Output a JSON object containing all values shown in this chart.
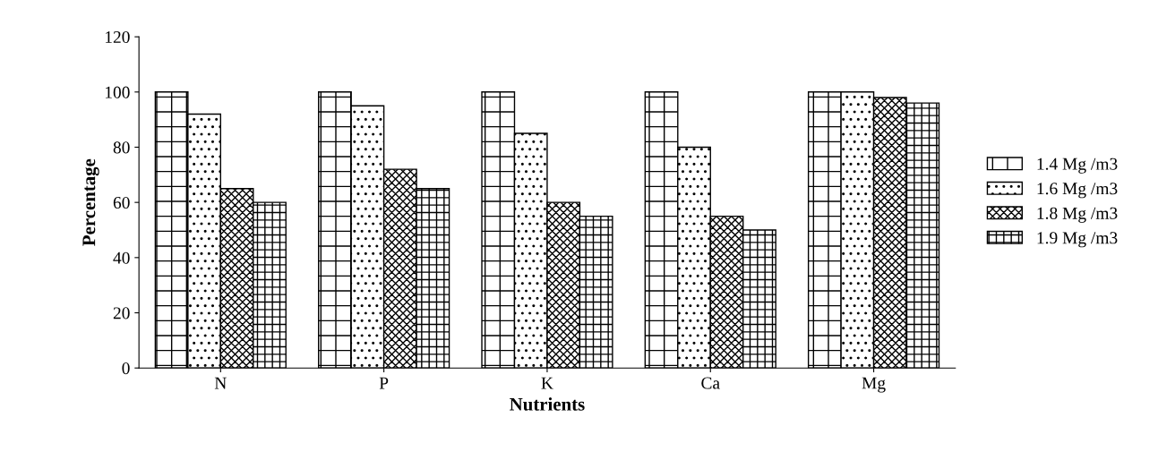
{
  "chart_data": {
    "type": "bar",
    "xlabel": "Nutrients",
    "ylabel": "Percentage",
    "categories": [
      "N",
      "P",
      "K",
      "Ca",
      "Mg"
    ],
    "series": [
      {
        "name": "1.4 Mg /m3",
        "color": "#000000",
        "values": [
          100,
          100,
          100,
          100,
          100
        ]
      },
      {
        "name": "1.6 Mg /m3",
        "color": "#000000",
        "values": [
          92,
          95,
          85,
          80,
          100
        ]
      },
      {
        "name": "1.8 Mg /m3",
        "color": "#000000",
        "values": [
          65,
          72,
          60,
          55,
          98
        ]
      },
      {
        "name": "1.9 Mg /m3",
        "color": "#000000",
        "values": [
          60,
          65,
          55,
          50,
          96
        ]
      }
    ],
    "ylim": [
      0,
      120
    ],
    "yticks": [
      0,
      20,
      40,
      60,
      80,
      100,
      120
    ],
    "grid": false,
    "legend": "right"
  }
}
